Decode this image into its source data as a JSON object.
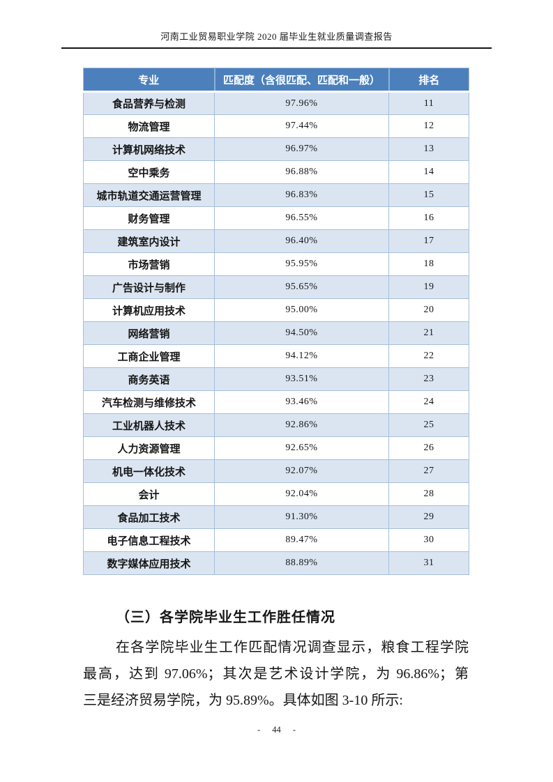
{
  "page": {
    "header_title": "河南工业贸易职业学院 2020 届毕业生就业质量调查报告",
    "footer_page_number": "- 44 -"
  },
  "table": {
    "columns": [
      "专业",
      "匹配度（含很匹配、匹配和一般）",
      "排名"
    ],
    "rows": [
      {
        "major": "食品营养与检测",
        "match": "97.96%",
        "rank": "11"
      },
      {
        "major": "物流管理",
        "match": "97.44%",
        "rank": "12"
      },
      {
        "major": "计算机网络技术",
        "match": "96.97%",
        "rank": "13"
      },
      {
        "major": "空中乘务",
        "match": "96.88%",
        "rank": "14"
      },
      {
        "major": "城市轨道交通运营管理",
        "match": "96.83%",
        "rank": "15"
      },
      {
        "major": "财务管理",
        "match": "96.55%",
        "rank": "16"
      },
      {
        "major": "建筑室内设计",
        "match": "96.40%",
        "rank": "17"
      },
      {
        "major": "市场营销",
        "match": "95.95%",
        "rank": "18"
      },
      {
        "major": "广告设计与制作",
        "match": "95.65%",
        "rank": "19"
      },
      {
        "major": "计算机应用技术",
        "match": "95.00%",
        "rank": "20"
      },
      {
        "major": "网络营销",
        "match": "94.50%",
        "rank": "21"
      },
      {
        "major": "工商企业管理",
        "match": "94.12%",
        "rank": "22"
      },
      {
        "major": "商务英语",
        "match": "93.51%",
        "rank": "23"
      },
      {
        "major": "汽车检测与维修技术",
        "match": "93.46%",
        "rank": "24"
      },
      {
        "major": "工业机器人技术",
        "match": "92.86%",
        "rank": "25"
      },
      {
        "major": "人力资源管理",
        "match": "92.65%",
        "rank": "26"
      },
      {
        "major": "机电一体化技术",
        "match": "92.07%",
        "rank": "27"
      },
      {
        "major": "会计",
        "match": "92.04%",
        "rank": "28"
      },
      {
        "major": "食品加工技术",
        "match": "91.30%",
        "rank": "29"
      },
      {
        "major": "电子信息工程技术",
        "match": "89.47%",
        "rank": "30"
      },
      {
        "major": "数字媒体应用技术",
        "match": "88.89%",
        "rank": "31"
      }
    ]
  },
  "section": {
    "heading": "（三）各学院毕业生工作胜任情况",
    "paragraph_lines": [
      "在各学院毕业生工作匹配情况调查显示，粮食工程学院",
      "最高，达到 97.06%；其次是艺术设计学院，为 96.86%；第",
      "三是经济贸易学院，为 95.89%。具体如图 3-10 所示:"
    ]
  },
  "colors": {
    "header_bg": "#4b80bc",
    "band_bg": "#dbe5f1",
    "grid": "#a3bedc",
    "header_divider": "#8fb0d4",
    "rule": "#141414"
  }
}
